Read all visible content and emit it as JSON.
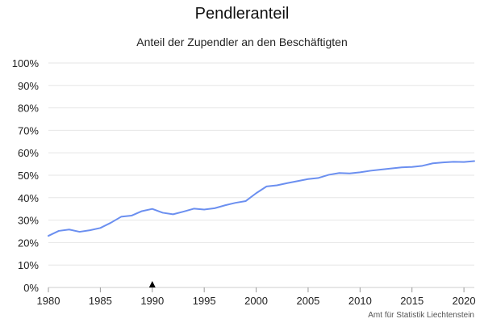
{
  "chart_data": {
    "type": "line",
    "title": "Pendleranteil",
    "subtitle": "Anteil der Zupendler an den Beschäftigten",
    "credits": "Amt für Statistik Liechtenstein",
    "xlabel": "",
    "ylabel": "",
    "xlim": [
      1980,
      2021
    ],
    "ylim": [
      0,
      100
    ],
    "x_ticks": [
      1980,
      1985,
      1990,
      1995,
      2000,
      2005,
      2010,
      2015,
      2020
    ],
    "x_tick_labels": [
      "1980",
      "1985",
      "1990",
      "1995",
      "2000",
      "2005",
      "2010",
      "2015",
      "2020"
    ],
    "y_ticks": [
      0,
      10,
      20,
      30,
      40,
      50,
      60,
      70,
      80,
      90,
      100
    ],
    "y_tick_labels": [
      "0%",
      "10%",
      "20%",
      "30%",
      "40%",
      "50%",
      "60%",
      "70%",
      "80%",
      "90%",
      "100%"
    ],
    "grid": true,
    "legend": "none",
    "marker_year": 1990,
    "colors": {
      "line": "#6b8ff0",
      "grid": "#e6e6e6",
      "axis": "#cccccc",
      "marker": "#000000"
    },
    "series": [
      {
        "x": [
          1980,
          1981,
          1982,
          1983,
          1984,
          1985,
          1986,
          1987,
          1988,
          1989,
          1990,
          1991,
          1992,
          1993,
          1994,
          1995,
          1996,
          1997,
          1998,
          1999,
          2000,
          2001,
          2002,
          2003,
          2004,
          2005,
          2006,
          2007,
          2008,
          2009,
          2010,
          2011,
          2012,
          2013,
          2014,
          2015,
          2016,
          2017,
          2018,
          2019,
          2020,
          2021
        ],
        "values": [
          23,
          25.2,
          25.8,
          24.8,
          25.5,
          26.5,
          28.8,
          31.5,
          32,
          34,
          35,
          33.3,
          32.6,
          33.8,
          35.1,
          34.7,
          35.3,
          36.6,
          37.7,
          38.5,
          42,
          45,
          45.5,
          46.5,
          47.4,
          48.3,
          48.8,
          50.2,
          51,
          50.8,
          51.3,
          52,
          52.5,
          53,
          53.5,
          53.7,
          54.2,
          55.3,
          55.7,
          56,
          55.9,
          56.3
        ]
      }
    ]
  }
}
